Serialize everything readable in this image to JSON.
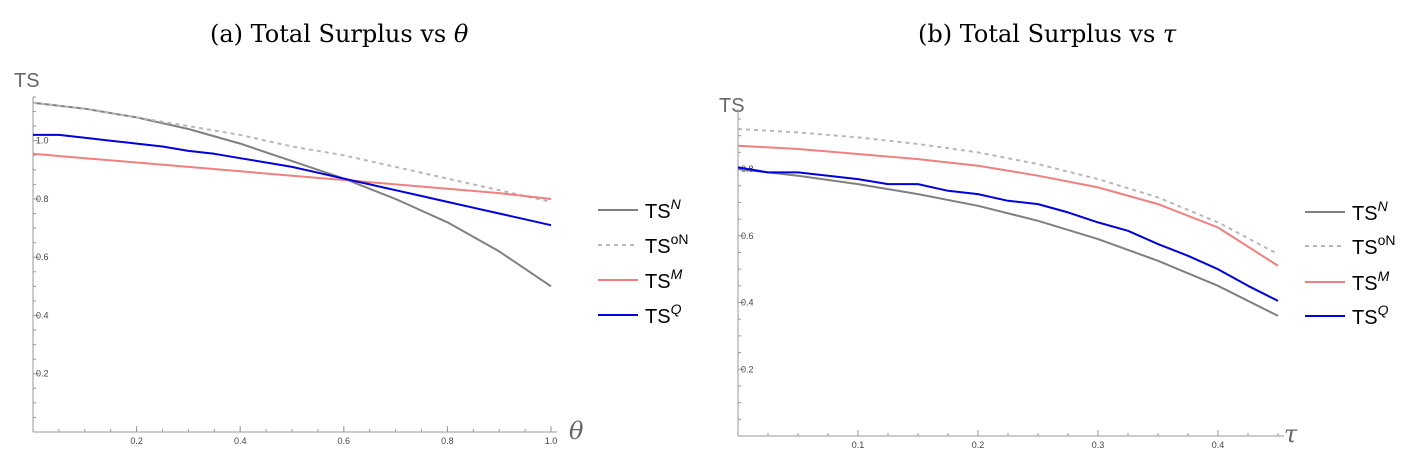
{
  "chart_data": [
    {
      "type": "line",
      "title": "(a) Total Surplus vs ",
      "title_symbol": "θ",
      "xlabel": "θ",
      "ylabel": "TS",
      "xlim": [
        0,
        1.0
      ],
      "ylim": [
        0,
        1.15
      ],
      "x_ticks": [
        "0.2",
        "0.4",
        "0.6",
        "0.8",
        "1.0"
      ],
      "x_tick_values": [
        0.2,
        0.4,
        0.6,
        0.8,
        1.0
      ],
      "y_ticks": [
        "0.2",
        "0.4",
        "0.6",
        "0.8",
        "1.0"
      ],
      "y_tick_values": [
        0.2,
        0.4,
        0.6,
        0.8,
        1.0
      ],
      "series": [
        {
          "name": "TS^N",
          "base": "TS",
          "sup": "N",
          "sup_italic": true,
          "color": "#808080",
          "dash": "",
          "x": [
            0,
            0.1,
            0.2,
            0.3,
            0.4,
            0.5,
            0.6,
            0.7,
            0.8,
            0.9,
            1.0
          ],
          "y": [
            1.13,
            1.11,
            1.08,
            1.04,
            0.99,
            0.93,
            0.87,
            0.8,
            0.72,
            0.62,
            0.5
          ]
        },
        {
          "name": "TS^oN",
          "base": "TS",
          "sup": "oN",
          "sup_italic": false,
          "color": "#b8b8b8",
          "dash": "4,4",
          "x": [
            0,
            0.1,
            0.2,
            0.3,
            0.4,
            0.5,
            0.6,
            0.7,
            0.8,
            0.9,
            1.0
          ],
          "y": [
            1.13,
            1.11,
            1.08,
            1.05,
            1.02,
            0.98,
            0.95,
            0.91,
            0.87,
            0.83,
            0.79
          ]
        },
        {
          "name": "TS^M",
          "base": "TS",
          "sup": "M",
          "sup_italic": true,
          "color": "#f08080",
          "dash": "",
          "x": [
            0,
            0.1,
            0.2,
            0.3,
            0.4,
            0.5,
            0.6,
            0.7,
            0.8,
            0.9,
            1.0
          ],
          "y": [
            0.955,
            0.94,
            0.925,
            0.91,
            0.895,
            0.88,
            0.865,
            0.85,
            0.835,
            0.82,
            0.8
          ]
        },
        {
          "name": "TS^Q",
          "base": "TS",
          "sup": "Q",
          "sup_italic": true,
          "color": "#0000dd",
          "dash": "",
          "x": [
            0,
            0.05,
            0.1,
            0.15,
            0.2,
            0.25,
            0.3,
            0.35,
            0.4,
            0.45,
            0.5,
            0.55,
            0.6,
            0.65,
            0.7,
            0.75,
            0.8,
            0.85,
            0.9,
            0.95,
            1.0
          ],
          "y": [
            1.02,
            1.02,
            1.01,
            1.0,
            0.99,
            0.98,
            0.965,
            0.955,
            0.94,
            0.925,
            0.91,
            0.89,
            0.87,
            0.85,
            0.83,
            0.81,
            0.79,
            0.77,
            0.75,
            0.73,
            0.71
          ]
        }
      ]
    },
    {
      "type": "line",
      "title": "(b) Total Surplus vs ",
      "title_symbol": "τ",
      "xlabel": "τ",
      "ylabel": "TS",
      "xlim": [
        0,
        0.45
      ],
      "ylim": [
        0,
        0.98
      ],
      "x_ticks": [
        "0.1",
        "0.2",
        "0.3",
        "0.4"
      ],
      "x_tick_values": [
        0.1,
        0.2,
        0.3,
        0.4
      ],
      "y_ticks": [
        "0.2",
        "0.4",
        "0.6",
        "0.8"
      ],
      "y_tick_values": [
        0.2,
        0.4,
        0.6,
        0.8
      ],
      "series": [
        {
          "name": "TS^N",
          "base": "TS",
          "sup": "N",
          "sup_italic": true,
          "color": "#808080",
          "dash": "",
          "x": [
            0,
            0.05,
            0.1,
            0.15,
            0.2,
            0.25,
            0.3,
            0.35,
            0.4,
            0.45
          ],
          "y": [
            0.8,
            0.78,
            0.755,
            0.725,
            0.69,
            0.645,
            0.59,
            0.525,
            0.45,
            0.36
          ]
        },
        {
          "name": "TS^oN",
          "base": "TS",
          "sup": "oN",
          "sup_italic": false,
          "color": "#b8b8b8",
          "dash": "4,4",
          "x": [
            0,
            0.05,
            0.1,
            0.15,
            0.2,
            0.25,
            0.3,
            0.35,
            0.4,
            0.45
          ],
          "y": [
            0.92,
            0.91,
            0.895,
            0.875,
            0.85,
            0.815,
            0.77,
            0.715,
            0.64,
            0.545
          ]
        },
        {
          "name": "TS^M",
          "base": "TS",
          "sup": "M",
          "sup_italic": true,
          "color": "#f08080",
          "dash": "",
          "x": [
            0,
            0.05,
            0.1,
            0.15,
            0.2,
            0.25,
            0.3,
            0.35,
            0.4,
            0.45
          ],
          "y": [
            0.87,
            0.86,
            0.845,
            0.83,
            0.81,
            0.78,
            0.745,
            0.695,
            0.625,
            0.51
          ]
        },
        {
          "name": "TS^Q",
          "base": "TS",
          "sup": "Q",
          "sup_italic": true,
          "color": "#0000dd",
          "dash": "",
          "x": [
            0,
            0.025,
            0.05,
            0.075,
            0.1,
            0.125,
            0.15,
            0.175,
            0.2,
            0.225,
            0.25,
            0.275,
            0.3,
            0.325,
            0.35,
            0.375,
            0.4,
            0.425,
            0.45
          ],
          "y": [
            0.805,
            0.79,
            0.79,
            0.78,
            0.77,
            0.755,
            0.755,
            0.735,
            0.725,
            0.705,
            0.695,
            0.67,
            0.64,
            0.615,
            0.575,
            0.54,
            0.5,
            0.45,
            0.405
          ]
        }
      ]
    }
  ]
}
